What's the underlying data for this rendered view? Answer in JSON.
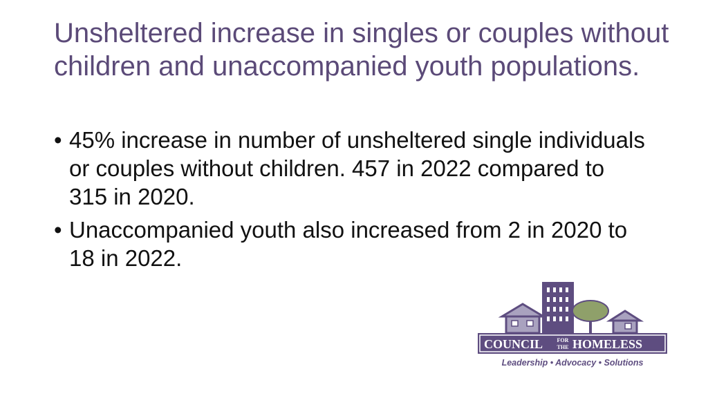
{
  "slide": {
    "title": "Unsheltered increase in singles or couples without children and unaccompanied youth populations.",
    "bullets": [
      "45% increase in number of unsheltered single individuals or couples without children.  457 in 2022 compared to 315 in 2020.",
      "Unaccompanied youth also increased from 2 in 2020 to 18 in 2022."
    ]
  },
  "logo": {
    "name_left": "COUNCIL",
    "name_for": "FOR",
    "name_the": "THE",
    "name_right": "HOMELESS",
    "tagline": "Leadership • Advocacy • Solutions"
  },
  "colors": {
    "title": "#5b4a78",
    "logo_purple": "#5e4d80",
    "logo_light": "#a9a2bf",
    "tree_green": "#8fa06a"
  }
}
